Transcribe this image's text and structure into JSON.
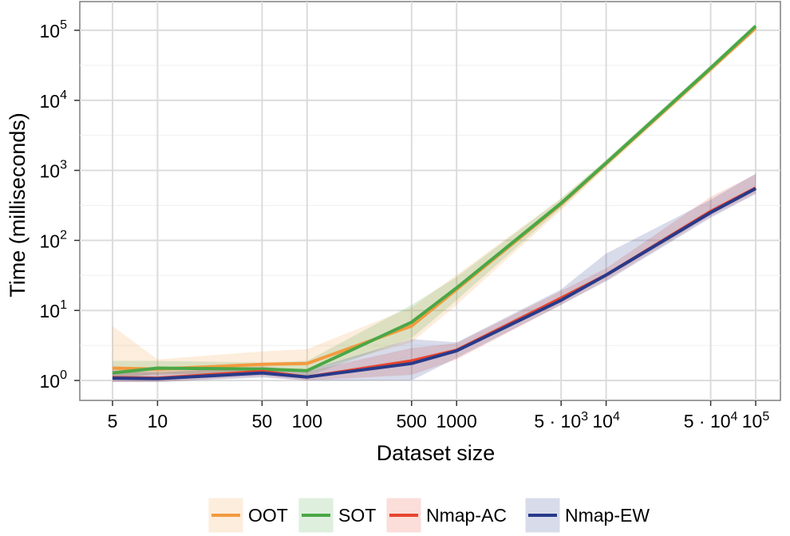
{
  "chart_data": {
    "type": "line",
    "x_scale": "log",
    "y_scale": "log",
    "xlabel": "Dataset size",
    "ylabel": "Time (milliseconds)",
    "xlim": [
      5,
      100000
    ],
    "ylim": [
      0.75,
      180000
    ],
    "grid": true,
    "legend_position": "bottom",
    "x": [
      5,
      10,
      50,
      100,
      500,
      1000,
      5000,
      10000,
      50000,
      100000
    ],
    "x_ticks": [
      {
        "value": 5,
        "label": "5"
      },
      {
        "value": 10,
        "label": "10"
      },
      {
        "value": 50,
        "label": "50"
      },
      {
        "value": 100,
        "label": "100"
      },
      {
        "value": 500,
        "label": "500"
      },
      {
        "value": 1000,
        "label": "1000"
      },
      {
        "value": 5000,
        "label": "5 · 10",
        "sup": "3"
      },
      {
        "value": 10000,
        "label": "10",
        "sup": "4"
      },
      {
        "value": 50000,
        "label": "5 · 10",
        "sup": "4"
      },
      {
        "value": 100000,
        "label": "10",
        "sup": "5"
      }
    ],
    "y_ticks": [
      {
        "value": 1,
        "label": "10",
        "sup": "0"
      },
      {
        "value": 10,
        "label": "10",
        "sup": "1"
      },
      {
        "value": 100,
        "label": "10",
        "sup": "2"
      },
      {
        "value": 1000,
        "label": "10",
        "sup": "3"
      },
      {
        "value": 10000,
        "label": "10",
        "sup": "4"
      },
      {
        "value": 100000,
        "label": "10",
        "sup": "5"
      }
    ],
    "series": [
      {
        "name": "OOT",
        "color": "#f39a3f",
        "values": [
          1.5,
          1.45,
          1.7,
          1.75,
          6.0,
          20,
          330,
          1250,
          28000,
          108000
        ],
        "lower": [
          1.1,
          1.2,
          1.3,
          1.35,
          3.5,
          12,
          270,
          1100,
          25000,
          100000
        ],
        "upper": [
          6.0,
          2.0,
          2.6,
          2.8,
          11,
          32,
          400,
          1400,
          31000,
          116000
        ]
      },
      {
        "name": "SOT",
        "color": "#4aa747",
        "values": [
          1.28,
          1.5,
          1.45,
          1.38,
          6.8,
          21,
          340,
          1280,
          29000,
          115000
        ],
        "lower": [
          1.05,
          1.25,
          1.2,
          1.15,
          4.0,
          14,
          290,
          1150,
          26000,
          108000
        ],
        "upper": [
          1.9,
          1.9,
          1.8,
          1.9,
          12,
          30,
          395,
          1420,
          32000,
          124000
        ]
      },
      {
        "name": "Nmap-AC",
        "color": "#e8452e",
        "values": [
          1.1,
          1.08,
          1.35,
          1.12,
          1.9,
          2.7,
          15,
          32,
          260,
          560
        ],
        "lower": [
          0.95,
          0.95,
          1.15,
          1.0,
          1.2,
          2.0,
          12,
          27,
          220,
          470
        ],
        "upper": [
          1.5,
          1.4,
          1.6,
          1.35,
          2.9,
          3.4,
          19,
          40,
          420,
          880
        ]
      },
      {
        "name": "Nmap-EW",
        "color": "#283a8a",
        "values": [
          1.08,
          1.06,
          1.28,
          1.12,
          1.75,
          2.65,
          14,
          32,
          250,
          550
        ],
        "lower": [
          0.95,
          0.95,
          1.1,
          1.0,
          1.0,
          2.1,
          12,
          26,
          210,
          460
        ],
        "upper": [
          1.35,
          1.3,
          1.55,
          1.4,
          3.9,
          3.5,
          20,
          65,
          380,
          900
        ]
      }
    ]
  }
}
